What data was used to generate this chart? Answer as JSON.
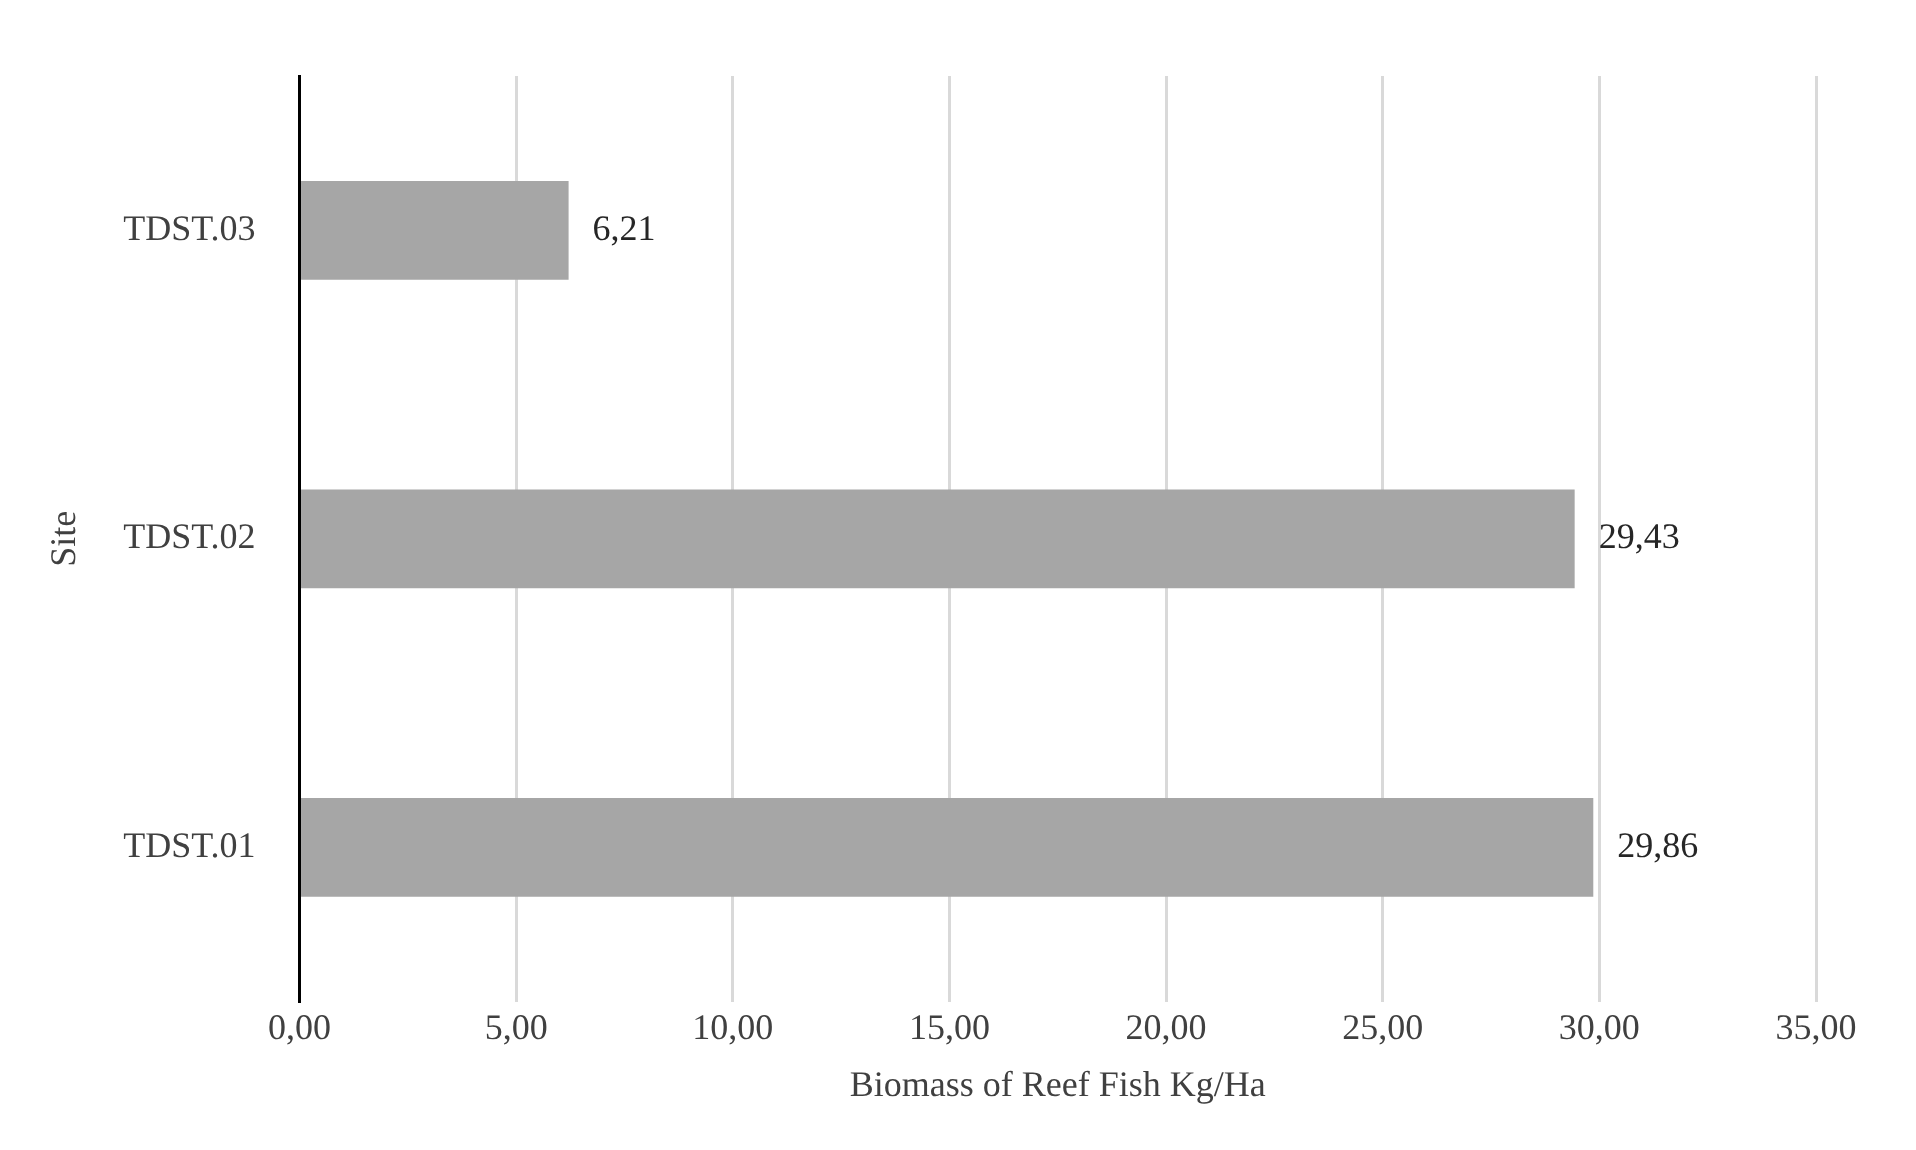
{
  "chart_data": {
    "type": "bar",
    "orientation": "horizontal",
    "xlabel": "Biomass of Reef Fish Kg/Ha",
    "ylabel": "Site",
    "categories": [
      "TDST.03",
      "TDST.02",
      "TDST.01"
    ],
    "values": [
      6.21,
      29.43,
      29.86
    ],
    "value_labels": [
      "6,21",
      "29,43",
      "29,86"
    ],
    "color": "#a6a6a6",
    "xlim": [
      0,
      35
    ],
    "xticks": [
      {
        "value": 0,
        "label": "0,00"
      },
      {
        "value": 5,
        "label": "5,00"
      },
      {
        "value": 10,
        "label": "10,00"
      },
      {
        "value": 15,
        "label": "15,00"
      },
      {
        "value": 20,
        "label": "20,00"
      },
      {
        "value": 25,
        "label": "25,00"
      },
      {
        "value": 30,
        "label": "30,00"
      },
      {
        "value": 35,
        "label": "35,00"
      }
    ],
    "grid": "x",
    "legend": false
  }
}
